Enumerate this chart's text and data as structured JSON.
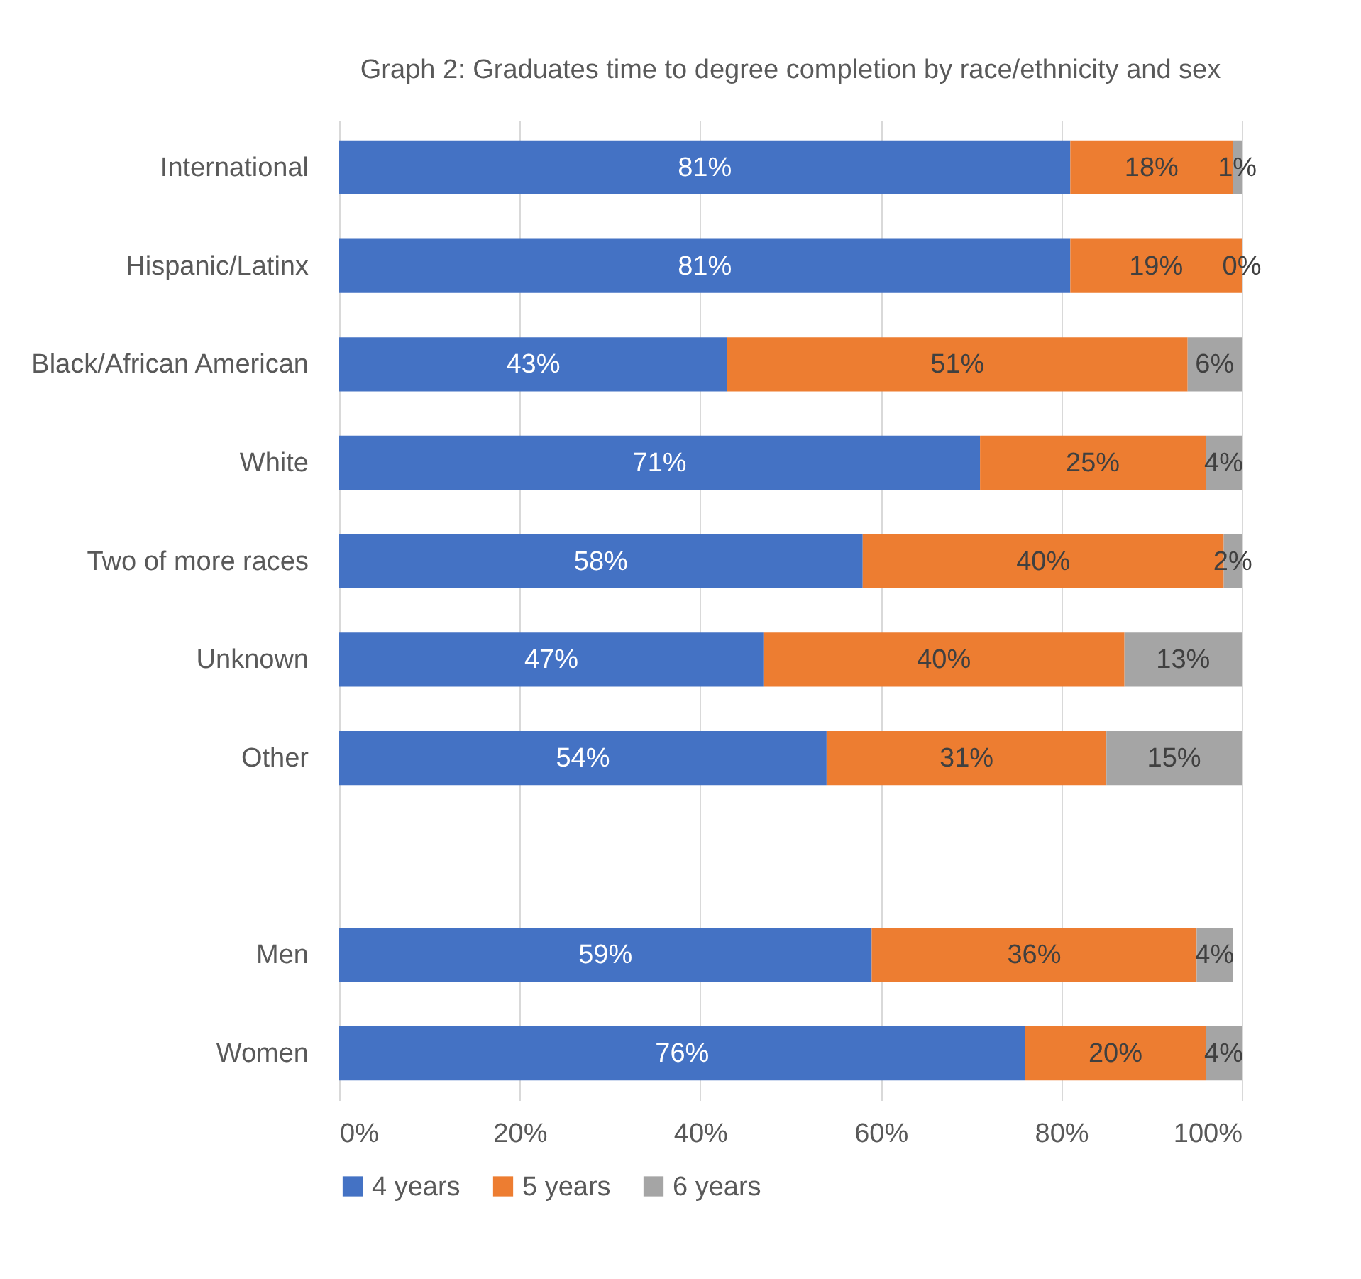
{
  "chart_data": {
    "type": "bar",
    "orientation": "horizontal",
    "stacked": true,
    "title": "Graph 2: Graduates time to degree completion by race/ethnicity and sex",
    "categories": [
      "International",
      "Hispanic/Latinx",
      "Black/African American",
      "White",
      "Two of more races",
      "Unknown",
      "Other",
      null,
      "Men",
      "Women"
    ],
    "series": [
      {
        "name": "4 years",
        "color": "#4472c4",
        "values": [
          81,
          81,
          43,
          71,
          58,
          47,
          54,
          null,
          59,
          76
        ],
        "value_labels": [
          "81%",
          "81%",
          "43%",
          "71%",
          "58%",
          "47%",
          "54%",
          null,
          "59%",
          "76%"
        ]
      },
      {
        "name": "5 years",
        "color": "#ed7d31",
        "values": [
          18,
          19,
          51,
          25,
          40,
          40,
          31,
          null,
          36,
          20
        ],
        "value_labels": [
          "18%",
          "19%",
          "51%",
          "25%",
          "40%",
          "40%",
          "31%",
          null,
          "36%",
          "20%"
        ]
      },
      {
        "name": "6 years",
        "color": "#a5a5a5",
        "values": [
          1,
          0,
          6,
          4,
          2,
          13,
          15,
          null,
          4,
          4
        ],
        "value_labels": [
          "1%",
          "0%",
          "6%",
          "4%",
          "2%",
          "13%",
          "15%",
          null,
          "4%",
          "4%"
        ]
      }
    ],
    "xlim": [
      0,
      100
    ],
    "xticks": [
      {
        "value": 0,
        "label": "0%"
      },
      {
        "value": 20,
        "label": "20%"
      },
      {
        "value": 40,
        "label": "40%"
      },
      {
        "value": 60,
        "label": "60%"
      },
      {
        "value": 80,
        "label": "80%"
      },
      {
        "value": 100,
        "label": "100%"
      }
    ],
    "grid": "x",
    "legend": "bottom"
  }
}
